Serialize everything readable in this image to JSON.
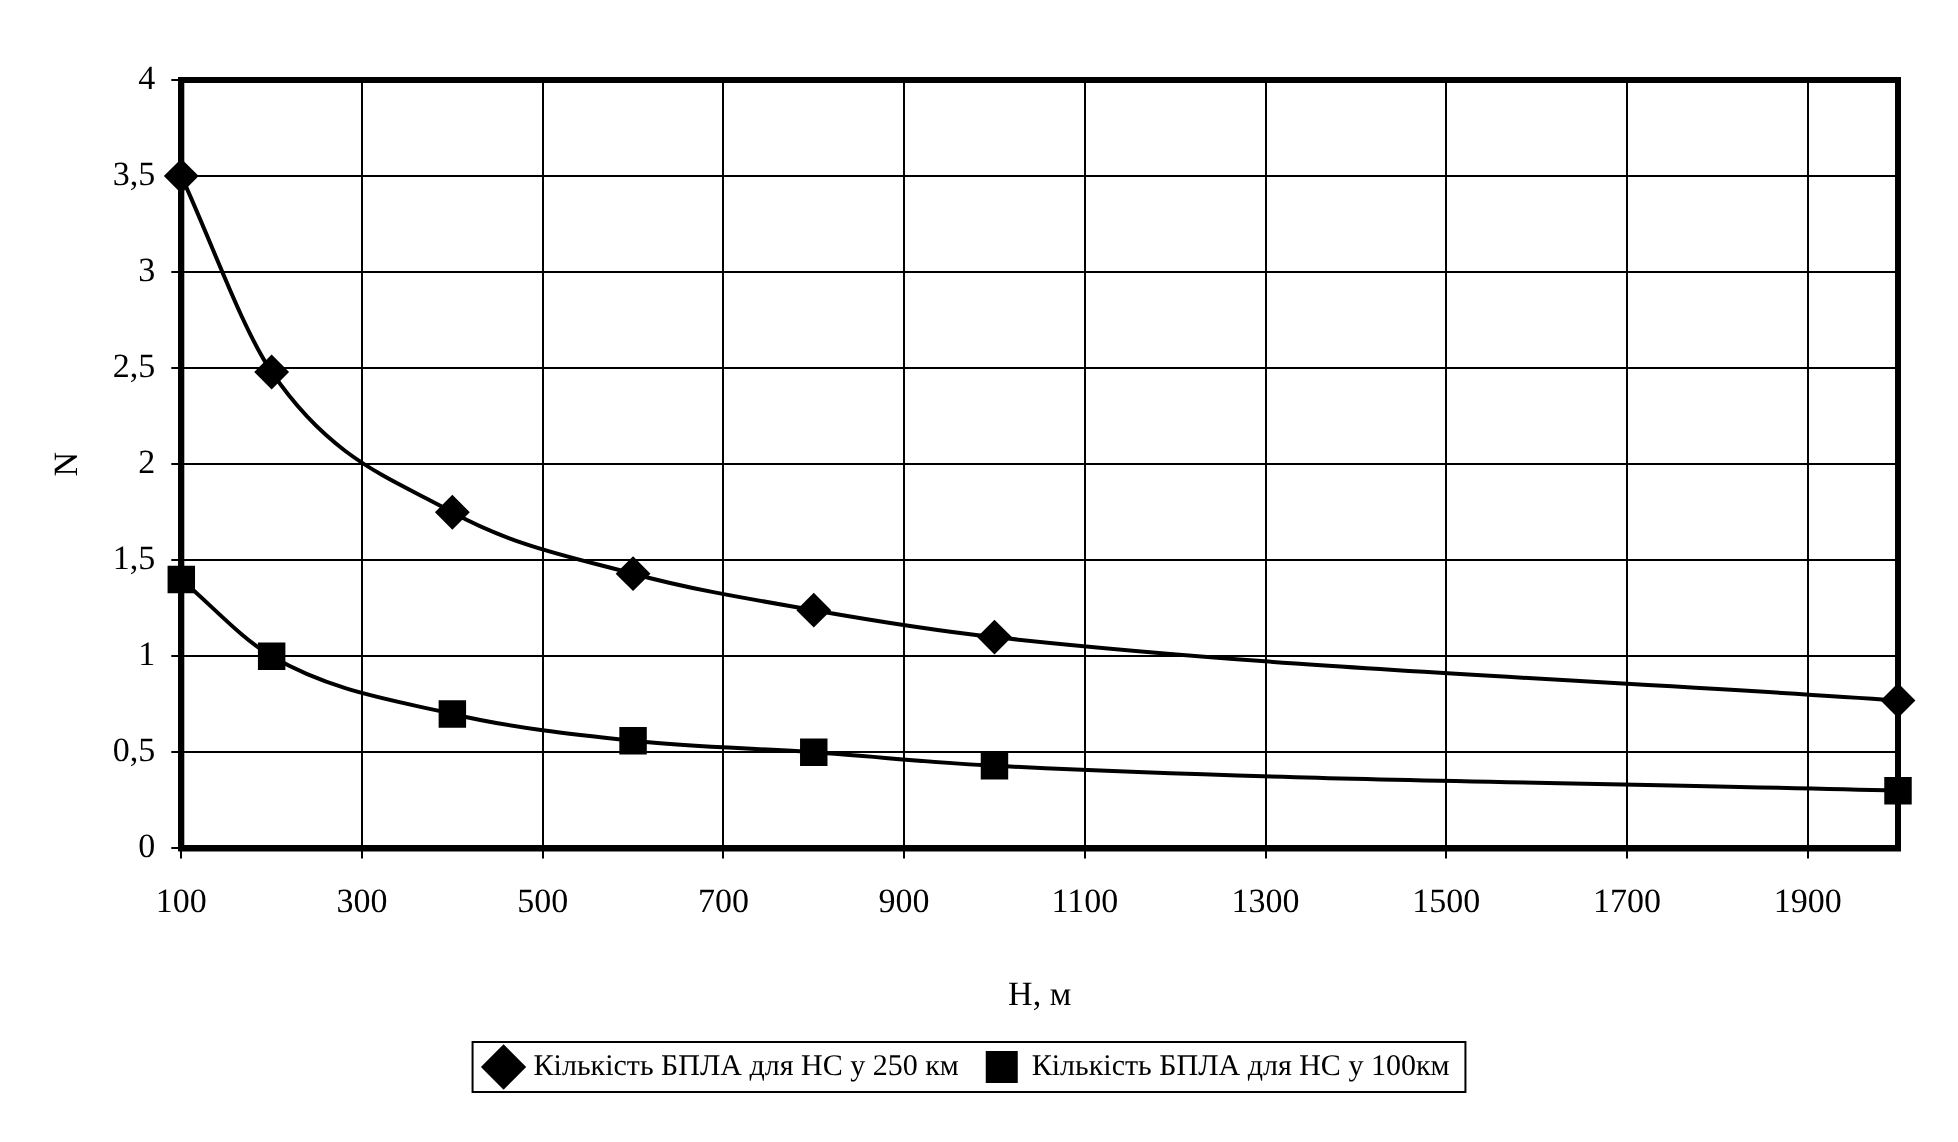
{
  "chart_data": {
    "type": "line",
    "xlabel": "H, м",
    "ylabel": "N",
    "xlim": [
      100,
      2000
    ],
    "xticks": [
      100,
      300,
      500,
      700,
      900,
      1100,
      1300,
      1500,
      1700,
      1900
    ],
    "ylim": [
      0,
      4
    ],
    "yticks": [
      0,
      {
        "value": 0.5,
        "label": "0,5"
      },
      1,
      {
        "value": 1.5,
        "label": "1,5"
      },
      2,
      {
        "value": 2.5,
        "label": "2,5"
      },
      3,
      {
        "value": 3.5,
        "label": "3,5"
      },
      4
    ],
    "grid": true,
    "legend": "bottom",
    "line_style": "solid",
    "series": [
      {
        "name": "Кількість БПЛА для НС у 250 км",
        "color": "#000000",
        "marker": "diamond",
        "x": [
          100,
          200,
          400,
          600,
          800,
          1000,
          2000
        ],
        "values": [
          3.5,
          2.48,
          1.75,
          1.43,
          1.24,
          1.1,
          0.77
        ]
      },
      {
        "name": "Кількість БПЛА для НС у 100км",
        "color": "#000000",
        "marker": "square",
        "x": [
          100,
          200,
          400,
          600,
          800,
          1000,
          2000
        ],
        "values": [
          1.4,
          1.0,
          0.7,
          0.56,
          0.5,
          0.43,
          0.3
        ]
      }
    ]
  }
}
